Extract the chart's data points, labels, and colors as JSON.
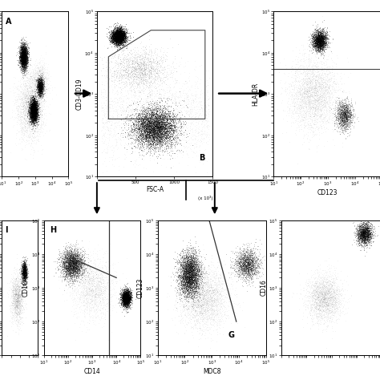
{
  "bg_color": "#ffffff",
  "panels": {
    "A": {
      "xlabel": "",
      "ylabel": ""
    },
    "B": {
      "xlabel": "FSC-A",
      "ylabel": "CD3-CD19",
      "xlabel_extra": "(x 10³)"
    },
    "C": {
      "xlabel": "CD123",
      "ylabel": "HLA-DR"
    },
    "H": {
      "xlabel": "CD14",
      "ylabel": "CD1C"
    },
    "G": {
      "xlabel": "MDC8",
      "ylabel": "CD123"
    },
    "I": {
      "xlabel": "",
      "ylabel": "CD1C"
    },
    "J": {
      "xlabel": "",
      "ylabel": "CD16"
    }
  },
  "seed": 42
}
